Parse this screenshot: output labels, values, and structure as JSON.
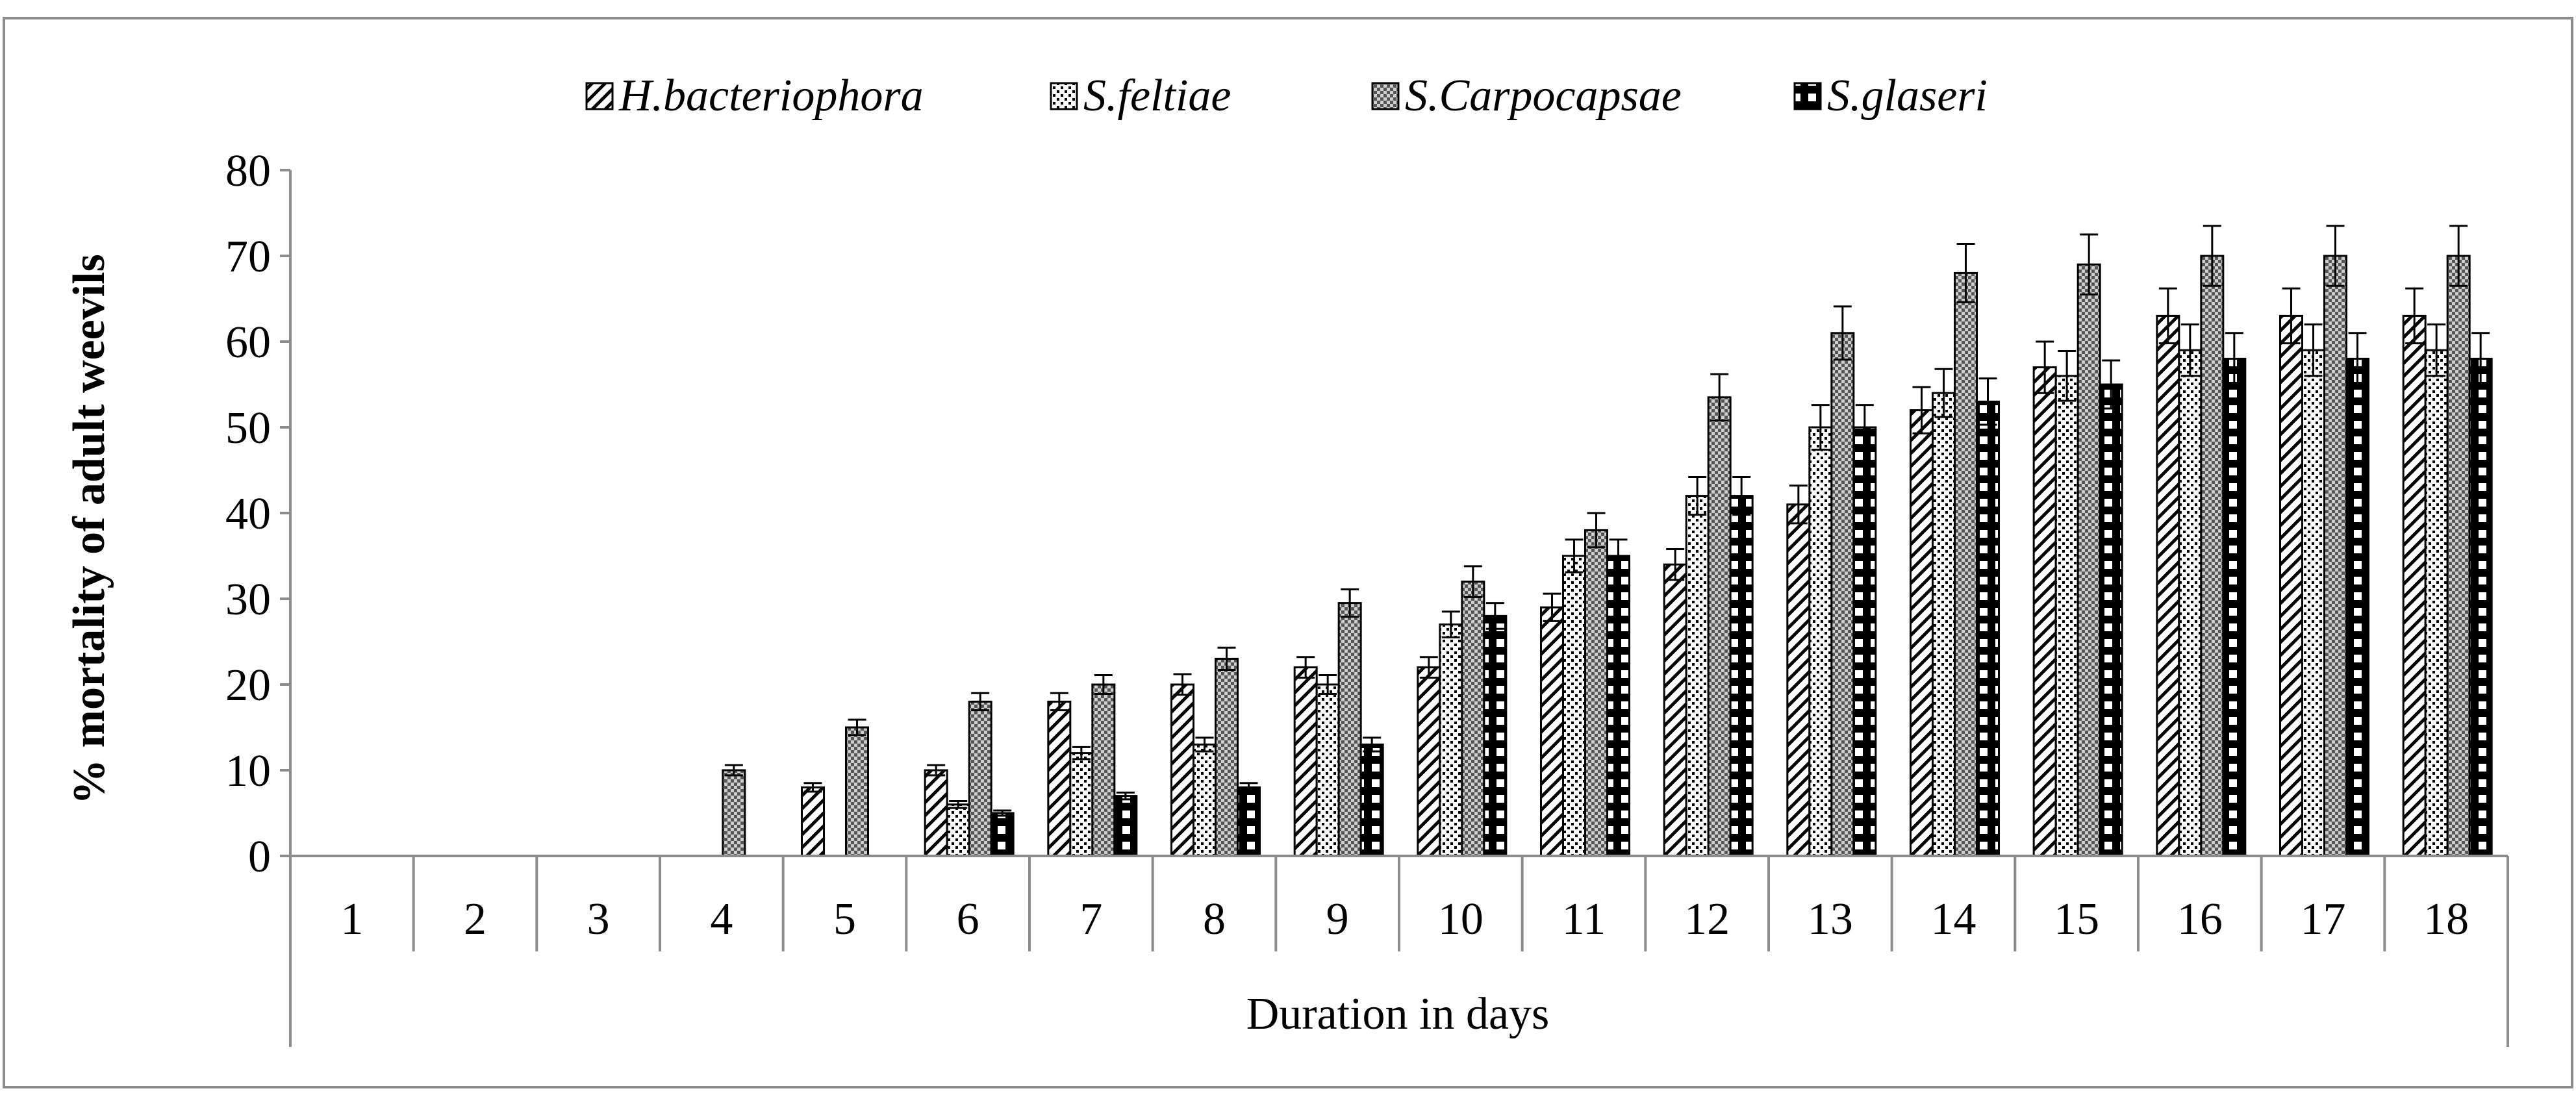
{
  "chart_data": {
    "type": "bar",
    "xlabel": "Duration in days",
    "ylabel": "% mortality of adult weevils",
    "ylim": [
      0,
      80
    ],
    "yticks": [
      "0",
      "10",
      "20",
      "30",
      "40",
      "50",
      "60",
      "70",
      "80"
    ],
    "grid": false,
    "legend_position": "top",
    "error_bars": true,
    "categories": [
      "1",
      "2",
      "3",
      "4",
      "5",
      "6",
      "7",
      "8",
      "9",
      "10",
      "11",
      "12",
      "13",
      "14",
      "15",
      "16",
      "17",
      "18"
    ],
    "series": [
      {
        "name": "H.bacteriophora",
        "pattern": "diagonal-hatch",
        "values": [
          0,
          0,
          0,
          0,
          8,
          10,
          18,
          20,
          22,
          22,
          29,
          34,
          41,
          52,
          57,
          63,
          63,
          63
        ],
        "errors": [
          0,
          0,
          0,
          0,
          0.5,
          0.6,
          1,
          1.2,
          1.2,
          1.2,
          1.6,
          1.8,
          2.2,
          2.7,
          3,
          3.2,
          3.2,
          3.2
        ]
      },
      {
        "name": "S.feltiae",
        "pattern": "dotted",
        "values": [
          0,
          0,
          0,
          0,
          0,
          6,
          12,
          13,
          20,
          27,
          35,
          42,
          50,
          54,
          56,
          59,
          59,
          59
        ],
        "errors": [
          0,
          0,
          0,
          0,
          0,
          0.4,
          0.7,
          0.8,
          1.1,
          1.5,
          1.9,
          2.2,
          2.6,
          2.8,
          2.9,
          3,
          3,
          3
        ]
      },
      {
        "name": "S.Carpocapsae",
        "pattern": "dense-crosshatch",
        "values": [
          0,
          0,
          0,
          10,
          15,
          18,
          20,
          23,
          29.5,
          32,
          38,
          53.5,
          61,
          68,
          69,
          70,
          70,
          70
        ],
        "errors": [
          0,
          0,
          0,
          0.6,
          0.9,
          1,
          1.1,
          1.3,
          1.6,
          1.8,
          2,
          2.7,
          3.1,
          3.4,
          3.5,
          3.5,
          3.5,
          3.5
        ]
      },
      {
        "name": "S.glaseri",
        "pattern": "black-checker",
        "values": [
          0,
          0,
          0,
          0,
          0,
          5,
          7,
          8,
          13,
          28,
          35,
          42,
          50,
          53,
          55,
          58,
          58,
          58
        ],
        "errors": [
          0,
          0,
          0,
          0,
          0,
          0.3,
          0.4,
          0.5,
          0.8,
          1.5,
          1.9,
          2.2,
          2.6,
          2.7,
          2.8,
          3,
          3,
          3
        ]
      }
    ]
  }
}
